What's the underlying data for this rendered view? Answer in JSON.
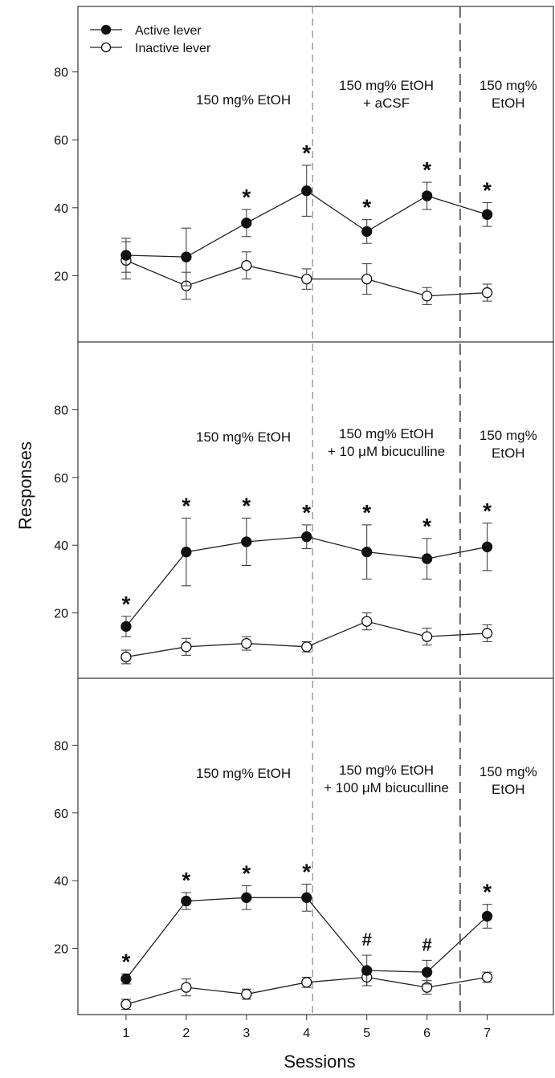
{
  "chart_data": {
    "type": "line",
    "xlabel": "Sessions",
    "ylabel": "Responses",
    "x_ticks": [
      1,
      2,
      3,
      4,
      5,
      6,
      7
    ],
    "y_ticks": [
      20,
      40,
      60,
      80
    ],
    "xlim": [
      0.2,
      8.1
    ],
    "ylim": [
      0,
      100
    ],
    "legend": {
      "placement": "top-left",
      "entries": [
        {
          "label": "Active lever",
          "marker": "filled-circle"
        },
        {
          "label": "Inactive lever",
          "marker": "open-circle"
        }
      ]
    },
    "phase_boundaries": [
      4.1,
      6.55
    ],
    "panels": [
      {
        "annotations": [
          {
            "lines": [
              "150 mg% EtOH"
            ]
          },
          {
            "lines": [
              "150 mg% EtOH",
              "+ aCSF"
            ]
          },
          {
            "lines": [
              "150 mg%",
              "EtOH"
            ]
          }
        ],
        "series": [
          {
            "name": "Active lever",
            "filled": true,
            "values": [
              26,
              25.5,
              35.5,
              45,
              33,
              43.5,
              38
            ],
            "errors": [
              5,
              8.5,
              4,
              7.5,
              3.5,
              4,
              3.5
            ],
            "significance": [
              "",
              "",
              "*",
              "*",
              "*",
              "*",
              "*"
            ]
          },
          {
            "name": "Inactive lever",
            "filled": false,
            "values": [
              24.5,
              17,
              23,
              19,
              19,
              14,
              15
            ],
            "errors": [
              5.5,
              4,
              4,
              3,
              4.5,
              2.5,
              2.5
            ]
          }
        ]
      },
      {
        "annotations": [
          {
            "lines": [
              "150 mg% EtOH"
            ]
          },
          {
            "lines": [
              "150 mg% EtOH",
              "+ 10 μM bicuculline"
            ]
          },
          {
            "lines": [
              "150 mg%",
              "EtOH"
            ]
          }
        ],
        "series": [
          {
            "name": "Active lever",
            "filled": true,
            "values": [
              16,
              38,
              41,
              42.5,
              38,
              36,
              39.5
            ],
            "errors": [
              3,
              10,
              7,
              3.5,
              8,
              6,
              7
            ],
            "significance": [
              "*",
              "*",
              "*",
              "*",
              "*",
              "*",
              "*"
            ]
          },
          {
            "name": "Inactive lever",
            "filled": false,
            "values": [
              7,
              10,
              11,
              10,
              17.5,
              13,
              14
            ],
            "errors": [
              2,
              2.5,
              2,
              1.5,
              2.5,
              2.5,
              2.5
            ]
          }
        ]
      },
      {
        "annotations": [
          {
            "lines": [
              "150 mg% EtOH"
            ]
          },
          {
            "lines": [
              "150 mg% EtOH",
              "+ 100 μM bicuculline"
            ]
          },
          {
            "lines": [
              "150 mg%",
              "EtOH"
            ]
          }
        ],
        "series": [
          {
            "name": "Active lever",
            "filled": true,
            "values": [
              11,
              34,
              35,
              35,
              13.5,
              13,
              29.5
            ],
            "errors": [
              1.5,
              2.5,
              3.5,
              4,
              4.5,
              3.5,
              3.5
            ],
            "significance": [
              "*",
              "*",
              "*",
              "*",
              "#",
              "#",
              "*"
            ]
          },
          {
            "name": "Inactive lever",
            "filled": false,
            "values": [
              3.5,
              8.5,
              6.5,
              10,
              11.5,
              8.5,
              11.5
            ],
            "errors": [
              1.5,
              2.5,
              1.5,
              1.5,
              2.5,
              2,
              1.5
            ]
          }
        ]
      }
    ]
  }
}
